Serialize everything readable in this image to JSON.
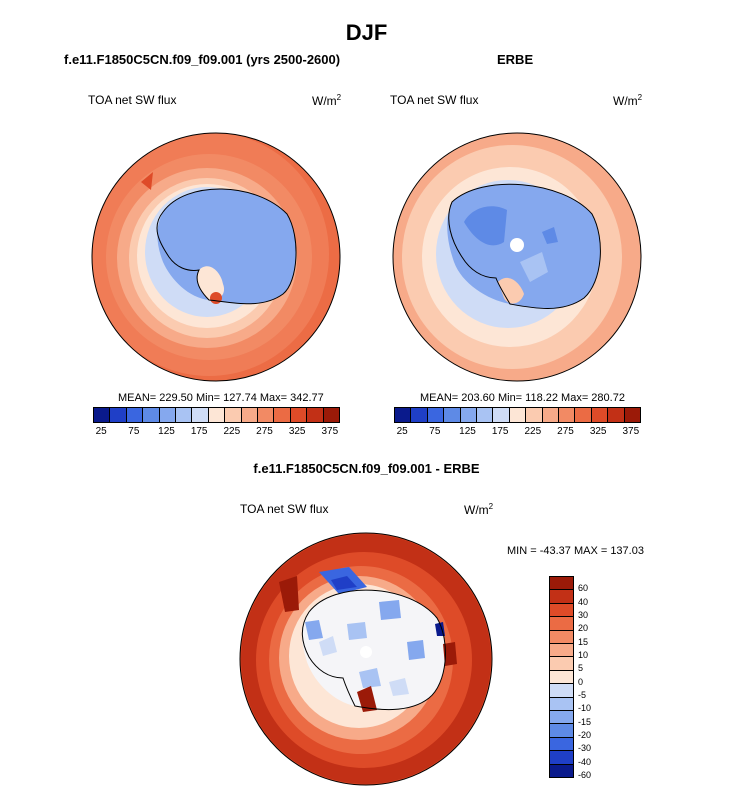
{
  "page": {
    "season": "DJF"
  },
  "panels": {
    "left": {
      "case": "f.e11.F1850C5CN.f09_f09.001 (yrs 2500-2600)",
      "variable": "TOA net SW flux",
      "units": "W/m",
      "units_sup": "2",
      "stats": "MEAN= 229.50  Min= 127.74  Max= 342.77"
    },
    "right": {
      "case": "ERBE",
      "variable": "TOA net SW flux",
      "units": "W/m",
      "units_sup": "2",
      "stats": "MEAN= 203.60  Min= 118.22  Max= 280.72"
    },
    "diff": {
      "case": "f.e11.F1850C5CN.f09_f09.001 - ERBE",
      "variable": "TOA net SW flux",
      "units": "W/m",
      "units_sup": "2",
      "stats": "MIN = -43.37 MAX = 137.03"
    }
  },
  "colorbar_abs": {
    "colors": [
      "#0a1a8c",
      "#1f3fc7",
      "#3a66e0",
      "#5e8ae6",
      "#85a8ee",
      "#a9c3f3",
      "#cfdcf6",
      "#fde6d6",
      "#fbcbb0",
      "#f7aa89",
      "#f28a64",
      "#eb6b44",
      "#de4b28",
      "#c23016",
      "#9b1a08"
    ],
    "labels": [
      "25",
      "75",
      "125",
      "175",
      "225",
      "275",
      "325",
      "375"
    ]
  },
  "colorbar_diff": {
    "colors": [
      "#9b1a08",
      "#c23016",
      "#de4b28",
      "#eb6b44",
      "#f28a64",
      "#f7aa89",
      "#fbcbb0",
      "#fde6d6",
      "#cfdcf6",
      "#a9c3f3",
      "#85a8ee",
      "#5e8ae6",
      "#3a66e0",
      "#1f3fc7",
      "#0a1a8c"
    ],
    "labels": [
      "60",
      "40",
      "30",
      "20",
      "15",
      "10",
      "5",
      "0",
      "-5",
      "-10",
      "-15",
      "-20",
      "-30",
      "-40",
      "-60"
    ]
  }
}
